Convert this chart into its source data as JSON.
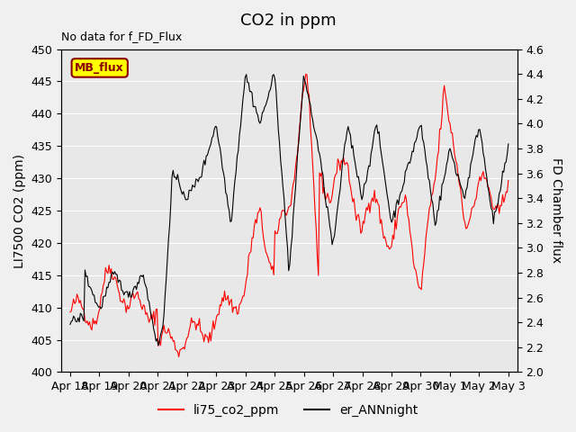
{
  "title": "CO2 in ppm",
  "ylabel_left": "LI7500 CO2 (ppm)",
  "ylabel_right": "FD Chamber flux",
  "ylim_left": [
    400,
    450
  ],
  "ylim_right": [
    2.0,
    4.6
  ],
  "no_data_text": "No data for f_FD_Flux",
  "mb_flux_label": "MB_flux",
  "legend_entries": [
    "li75_co2_ppm",
    "er_ANNnight"
  ],
  "line_colors": [
    "red",
    "black"
  ],
  "bg_color": "#e8e8e8",
  "fig_bg": "#f0f0f0",
  "xtick_labels": [
    "Apr 18",
    "Apr 19",
    "Apr 20",
    "Apr 21",
    "Apr 22",
    "Apr 23",
    "Apr 24",
    "Apr 25",
    "Apr 26",
    "Apr 27",
    "Apr 28",
    "Apr 29",
    "Apr 30",
    "May 1",
    "May 2",
    "May 3"
  ],
  "title_fontsize": 13,
  "label_fontsize": 10,
  "tick_fontsize": 9
}
